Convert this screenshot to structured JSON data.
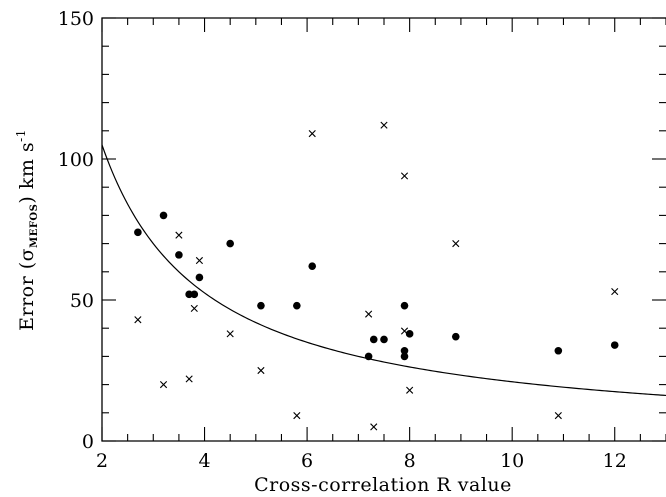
{
  "chart_data": {
    "type": "scatter",
    "xlabel": "Cross-correlation R value",
    "ylabel": {
      "prefix": "Error (",
      "symbol": "σ",
      "subscript": "MEFOS",
      "suffix": ") km s",
      "superscript": "-1"
    },
    "xlim": [
      2,
      13
    ],
    "ylim": [
      0,
      150
    ],
    "xticks": [
      2,
      4,
      6,
      8,
      10,
      12
    ],
    "yticks": [
      0,
      50,
      100,
      150
    ],
    "grid": false,
    "series": [
      {
        "marker": "filled-circle",
        "points": [
          [
            2.7,
            74
          ],
          [
            3.2,
            80
          ],
          [
            3.5,
            66
          ],
          [
            3.7,
            52
          ],
          [
            3.8,
            52
          ],
          [
            3.9,
            58
          ],
          [
            4.5,
            70
          ],
          [
            5.1,
            48
          ],
          [
            5.8,
            48
          ],
          [
            6.1,
            62
          ],
          [
            7.2,
            30
          ],
          [
            7.3,
            36
          ],
          [
            7.5,
            36
          ],
          [
            7.9,
            48
          ],
          [
            7.9,
            32
          ],
          [
            7.9,
            30
          ],
          [
            8.0,
            38
          ],
          [
            8.9,
            37
          ],
          [
            10.9,
            32
          ],
          [
            12.0,
            34
          ]
        ]
      },
      {
        "marker": "cross",
        "points": [
          [
            2.7,
            43
          ],
          [
            3.2,
            20
          ],
          [
            3.5,
            73
          ],
          [
            3.7,
            22
          ],
          [
            3.8,
            47
          ],
          [
            3.9,
            64
          ],
          [
            4.5,
            38
          ],
          [
            5.1,
            25
          ],
          [
            5.8,
            9
          ],
          [
            6.1,
            109
          ],
          [
            7.2,
            45
          ],
          [
            7.3,
            5
          ],
          [
            7.5,
            112
          ],
          [
            7.9,
            94
          ],
          [
            7.9,
            39
          ],
          [
            8.0,
            18
          ],
          [
            8.9,
            70
          ],
          [
            10.9,
            9
          ],
          [
            12.0,
            53
          ]
        ]
      },
      {
        "marker": "line",
        "curve": "y = 210 / x",
        "coefficient": 210
      }
    ]
  }
}
